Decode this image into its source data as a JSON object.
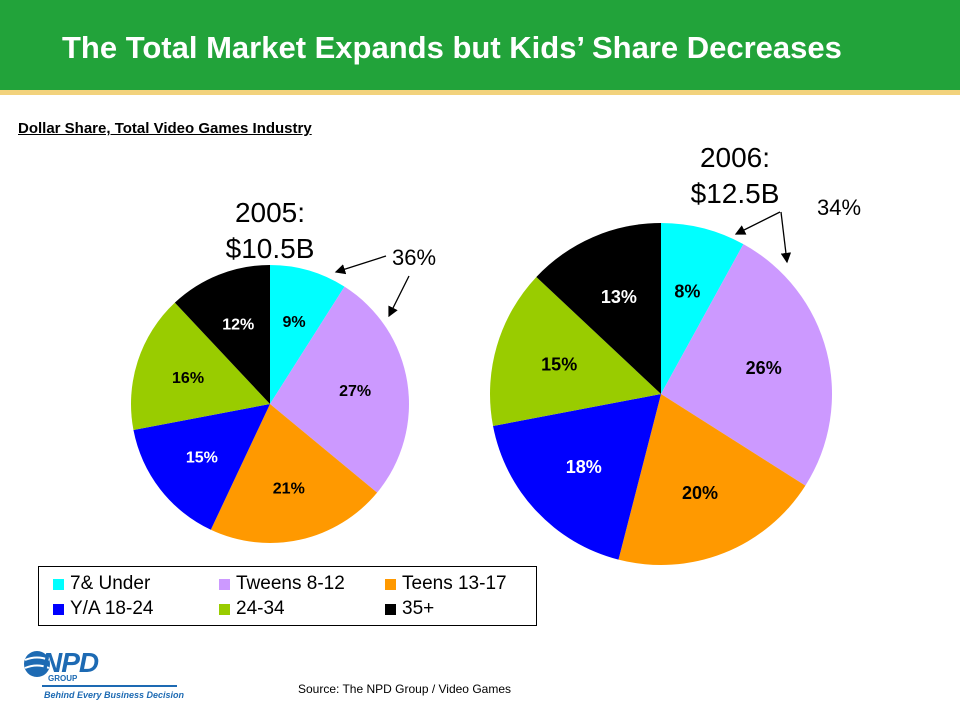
{
  "header": {
    "title": "The Total Market Expands but Kids’ Share Decreases"
  },
  "subtitle": "Dollar Share, Total Video Games Industry",
  "chart_data": [
    {
      "type": "pie",
      "title_line1": "2005:",
      "title_line2": "$10.5B",
      "annotation": "36%",
      "categories": [
        "7& Under",
        "Tweens 8-12",
        "Teens 13-17",
        "Y/A 18-24",
        "24-34",
        "35+"
      ],
      "values": [
        9,
        27,
        21,
        15,
        16,
        12
      ],
      "labels": [
        "9%",
        "27%",
        "21%",
        "15%",
        "16%",
        "12%"
      ]
    },
    {
      "type": "pie",
      "title_line1": "2006:",
      "title_line2": "$12.5B",
      "annotation": "34%",
      "categories": [
        "7& Under",
        "Tweens 8-12",
        "Teens 13-17",
        "Y/A 18-24",
        "24-34",
        "35+"
      ],
      "values": [
        8,
        26,
        20,
        18,
        15,
        13
      ],
      "labels": [
        "8%",
        "26%",
        "20%",
        "18%",
        "15%",
        "13%"
      ]
    }
  ],
  "colors": [
    "#00ffff",
    "#cc99ff",
    "#ff9900",
    "#0000ff",
    "#99cc00",
    "#000000"
  ],
  "label_colors": [
    "#000000",
    "#000000",
    "#000000",
    "#ffffff",
    "#000000",
    "#ffffff"
  ],
  "legend": {
    "items": [
      "7& Under",
      "Tweens 8-12",
      "Teens 13-17",
      "Y/A 18-24",
      "24-34",
      "35+"
    ]
  },
  "logo": {
    "wordmark": "NPD",
    "group": "GROUP",
    "tagline": "Behind Every Business Decision"
  },
  "source": "Source:  The NPD Group / Video Games"
}
